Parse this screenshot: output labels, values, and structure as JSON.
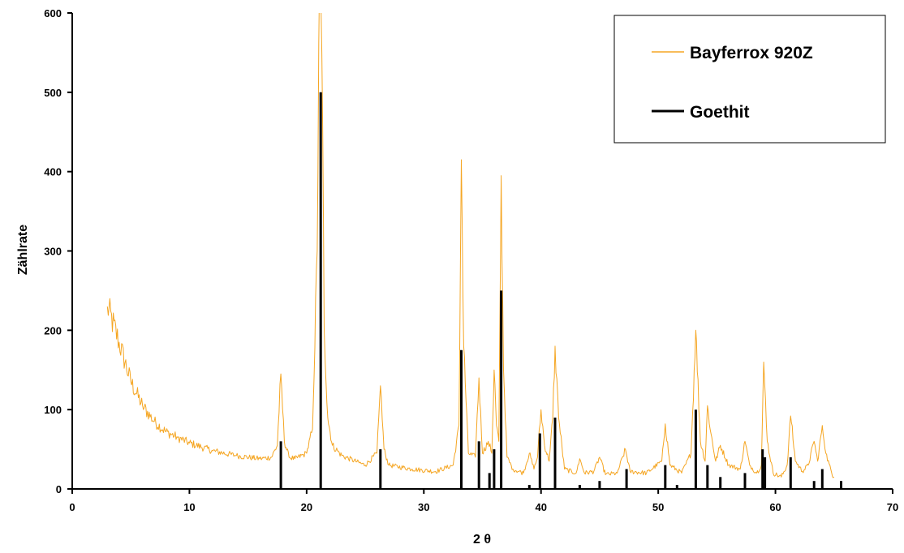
{
  "chart_data": {
    "type": "line",
    "title": "",
    "xlabel": "2 θ",
    "ylabel": "Zählrate",
    "xlim": [
      0,
      70
    ],
    "ylim": [
      0,
      600
    ],
    "x_ticks": [
      0,
      10,
      20,
      30,
      40,
      50,
      60,
      70
    ],
    "y_ticks": [
      0,
      100,
      200,
      300,
      400,
      500,
      600
    ],
    "grid": false,
    "legend_position": "top-right",
    "series": [
      {
        "name": "Bayferrox 920Z",
        "color": "#F5A623",
        "style": "line",
        "x": [
          3,
          4,
          5,
          6,
          7,
          8,
          9,
          10,
          12,
          14,
          16,
          17,
          17.5,
          17.8,
          18.1,
          18.5,
          19,
          20,
          20.5,
          20.9,
          21.1,
          21.3,
          21.5,
          21.8,
          22.2,
          23,
          25,
          26,
          26.3,
          26.6,
          27,
          29,
          31,
          32.5,
          33,
          33.2,
          33.4,
          33.8,
          34.4,
          34.7,
          35,
          35.5,
          35.8,
          36,
          36.2,
          36.4,
          36.6,
          36.8,
          37.1,
          37.6,
          38.5,
          39,
          39.4,
          39.7,
          40,
          40.3,
          40.7,
          41,
          41.2,
          41.5,
          42,
          43,
          43.3,
          43.7,
          44.5,
          45,
          45.5,
          46.5,
          47.2,
          47.6,
          49,
          50.3,
          50.6,
          51,
          52,
          52.8,
          53.2,
          53.6,
          54,
          54.2,
          54.5,
          54.9,
          55.3,
          56,
          57,
          57.4,
          57.8,
          58.4,
          58.8,
          59,
          59.3,
          59.8,
          60.5,
          61,
          61.3,
          61.7,
          62.3,
          62.8,
          63.3,
          63.6,
          64,
          64.3,
          64.8,
          65
        ],
        "y": [
          230,
          185,
          135,
          105,
          85,
          72,
          65,
          58,
          48,
          42,
          38,
          40,
          55,
          145,
          60,
          40,
          38,
          45,
          75,
          300,
          640,
          550,
          200,
          90,
          55,
          42,
          30,
          45,
          130,
          50,
          30,
          25,
          22,
          30,
          80,
          415,
          180,
          45,
          40,
          140,
          45,
          60,
          45,
          150,
          80,
          60,
          395,
          150,
          40,
          25,
          20,
          45,
          25,
          40,
          100,
          55,
          35,
          90,
          180,
          90,
          25,
          20,
          38,
          20,
          22,
          40,
          18,
          20,
          50,
          22,
          20,
          35,
          82,
          30,
          20,
          45,
          200,
          60,
          35,
          105,
          70,
          35,
          55,
          30,
          25,
          60,
          30,
          20,
          30,
          160,
          60,
          20,
          15,
          30,
          92,
          35,
          22,
          30,
          60,
          35,
          80,
          45,
          20,
          15
        ]
      },
      {
        "name": "Goethit",
        "color": "#000000",
        "style": "stick",
        "x": [
          17.8,
          21.2,
          26.3,
          33.2,
          34.7,
          35.6,
          36.0,
          36.6,
          39.0,
          39.9,
          41.2,
          43.3,
          45.0,
          47.3,
          50.6,
          51.6,
          53.2,
          54.2,
          55.3,
          57.4,
          58.9,
          59.1,
          61.3,
          63.3,
          64.0,
          65.6
        ],
        "y": [
          60,
          500,
          50,
          175,
          60,
          20,
          50,
          250,
          5,
          70,
          90,
          5,
          10,
          25,
          30,
          5,
          100,
          30,
          15,
          20,
          50,
          40,
          40,
          10,
          25,
          10
        ]
      }
    ]
  }
}
